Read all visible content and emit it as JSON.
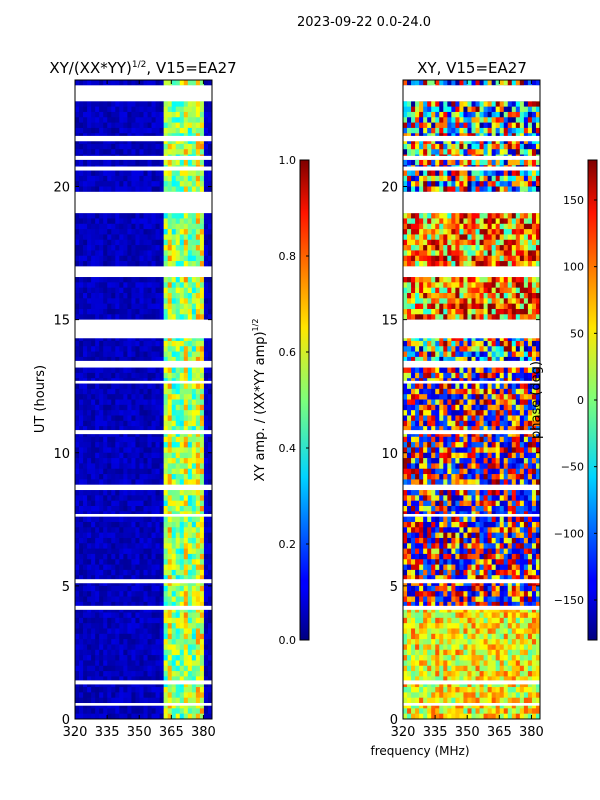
{
  "figure_title": "2023-09-22 0.0-24.0",
  "chart_data": [
    {
      "type": "heatmap",
      "title_main": "XY/(XX*YY)",
      "title_sup": "1/2",
      "title_tail": ", V15=EA27",
      "xlabel": "",
      "ylabel": "UT (hours)",
      "xlim": [
        320,
        384
      ],
      "ylim": [
        0,
        24
      ],
      "xticks": [
        320,
        335,
        350,
        365,
        380
      ],
      "yticks": [
        0,
        5,
        10,
        15,
        20
      ],
      "colorbar": {
        "label": "XY amp. / (XX*YY amp)",
        "label_sup": "1/2",
        "range": [
          0.0,
          1.0
        ],
        "ticks": [
          "0.0",
          "0.2",
          "0.4",
          "0.6",
          "0.8",
          "1.0"
        ],
        "tick_values": [
          0.0,
          0.2,
          0.4,
          0.6,
          0.8,
          1.0
        ],
        "colormap": "jet"
      },
      "flagged_rows_ut": [
        [
          23.2,
          23.8
        ],
        [
          21.7,
          21.9
        ],
        [
          21.0,
          21.15
        ],
        [
          20.6,
          20.75
        ],
        [
          19.0,
          19.8
        ],
        [
          16.6,
          17.0
        ],
        [
          14.3,
          15.0
        ],
        [
          13.2,
          13.45
        ],
        [
          12.6,
          12.7
        ],
        [
          10.7,
          10.85
        ],
        [
          8.6,
          8.8
        ],
        [
          7.6,
          7.7
        ],
        [
          5.1,
          5.25
        ],
        [
          4.1,
          4.25
        ],
        [
          1.3,
          1.45
        ],
        [
          0.5,
          0.6
        ]
      ]
    },
    {
      "type": "heatmap",
      "title_main": "XY, V15=EA27",
      "xlabel": "frequency (MHz)",
      "ylabel": "",
      "xlim": [
        320,
        384
      ],
      "ylim": [
        0,
        24
      ],
      "xticks": [
        320,
        335,
        350,
        365,
        380
      ],
      "yticks": [
        0,
        5,
        10,
        15,
        20
      ],
      "colorbar": {
        "label": "phase (deg)",
        "range": [
          -180,
          180
        ],
        "ticks": [
          "150",
          "100",
          "50",
          "0",
          "−50",
          "−100",
          "−150"
        ],
        "tick_values": [
          150,
          100,
          50,
          0,
          -50,
          -100,
          -150
        ],
        "colormap": "jet"
      },
      "flagged_rows_ut": [
        [
          23.2,
          23.8
        ],
        [
          21.7,
          21.9
        ],
        [
          21.0,
          21.15
        ],
        [
          20.6,
          20.75
        ],
        [
          19.0,
          19.8
        ],
        [
          16.6,
          17.0
        ],
        [
          14.3,
          15.0
        ],
        [
          13.2,
          13.45
        ],
        [
          12.6,
          12.7
        ],
        [
          10.7,
          10.85
        ],
        [
          8.6,
          8.8
        ],
        [
          7.6,
          7.7
        ],
        [
          5.1,
          5.25
        ],
        [
          4.1,
          4.25
        ],
        [
          1.3,
          1.45
        ],
        [
          0.5,
          0.6
        ]
      ]
    }
  ]
}
